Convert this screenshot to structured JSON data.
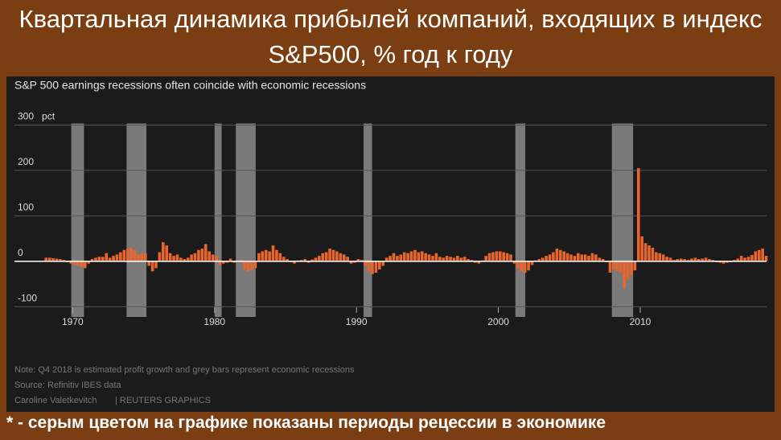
{
  "header": {
    "title": "Квартальная динамика прибылей компаний, входящих в индекс S&P500, % год к году"
  },
  "chart_data": {
    "type": "bar",
    "subtitle": "S&P 500 earnings recessions often coincide with economic recessions",
    "x": [
      1968,
      1968.25,
      1968.5,
      1968.75,
      1969,
      1969.25,
      1969.5,
      1969.75,
      1970,
      1970.25,
      1970.5,
      1970.75,
      1971,
      1971.25,
      1971.5,
      1971.75,
      1972,
      1972.25,
      1972.5,
      1972.75,
      1973,
      1973.25,
      1973.5,
      1973.75,
      1974,
      1974.25,
      1974.5,
      1974.75,
      1975,
      1975.25,
      1975.5,
      1975.75,
      1976,
      1976.25,
      1976.5,
      1976.75,
      1977,
      1977.25,
      1977.5,
      1977.75,
      1978,
      1978.25,
      1978.5,
      1978.75,
      1979,
      1979.25,
      1979.5,
      1979.75,
      1980,
      1980.25,
      1980.5,
      1980.75,
      1981,
      1981.25,
      1981.5,
      1981.75,
      1982,
      1982.25,
      1982.5,
      1982.75,
      1983,
      1983.25,
      1983.5,
      1983.75,
      1984,
      1984.25,
      1984.5,
      1984.75,
      1985,
      1985.25,
      1985.5,
      1985.75,
      1986,
      1986.25,
      1986.5,
      1986.75,
      1987,
      1987.25,
      1987.5,
      1987.75,
      1988,
      1988.25,
      1988.5,
      1988.75,
      1989,
      1989.25,
      1989.5,
      1989.75,
      1990,
      1990.25,
      1990.5,
      1990.75,
      1991,
      1991.25,
      1991.5,
      1991.75,
      1992,
      1992.25,
      1992.5,
      1992.75,
      1993,
      1993.25,
      1993.5,
      1993.75,
      1994,
      1994.25,
      1994.5,
      1994.75,
      1995,
      1995.25,
      1995.5,
      1995.75,
      1996,
      1996.25,
      1996.5,
      1996.75,
      1997,
      1997.25,
      1997.5,
      1997.75,
      1998,
      1998.25,
      1998.5,
      1998.75,
      1999,
      1999.25,
      1999.5,
      1999.75,
      2000,
      2000.25,
      2000.5,
      2000.75,
      2001,
      2001.25,
      2001.5,
      2001.75,
      2002,
      2002.25,
      2002.5,
      2002.75,
      2003,
      2003.25,
      2003.5,
      2003.75,
      2004,
      2004.25,
      2004.5,
      2004.75,
      2005,
      2005.25,
      2005.5,
      2005.75,
      2006,
      2006.25,
      2006.5,
      2006.75,
      2007,
      2007.25,
      2007.5,
      2007.75,
      2008,
      2008.25,
      2008.5,
      2008.75,
      2009,
      2009.25,
      2009.5,
      2009.75,
      2010,
      2010.25,
      2010.5,
      2010.75,
      2011,
      2011.25,
      2011.5,
      2011.75,
      2012,
      2012.25,
      2012.5,
      2012.75,
      2013,
      2013.25,
      2013.5,
      2013.75,
      2014,
      2014.25,
      2014.5,
      2014.75,
      2015,
      2015.25,
      2015.5,
      2015.75,
      2016,
      2016.25,
      2016.5,
      2016.75,
      2017,
      2017.25,
      2017.5,
      2017.75,
      2018,
      2018.25,
      2018.5,
      2018.75
    ],
    "values": [
      8,
      8,
      7,
      6,
      5,
      3,
      -2,
      -5,
      -8,
      -10,
      -12,
      -15,
      -5,
      5,
      8,
      10,
      10,
      18,
      8,
      12,
      15,
      20,
      25,
      28,
      30,
      25,
      15,
      18,
      18,
      -10,
      -22,
      -15,
      20,
      42,
      35,
      18,
      12,
      15,
      8,
      5,
      8,
      15,
      18,
      25,
      28,
      38,
      22,
      15,
      12,
      -8,
      -5,
      -3,
      6,
      -3,
      2,
      3,
      -18,
      -22,
      -20,
      -15,
      18,
      22,
      25,
      22,
      35,
      25,
      18,
      10,
      5,
      -2,
      -5,
      2,
      3,
      5,
      -3,
      4,
      8,
      12,
      18,
      20,
      28,
      25,
      22,
      18,
      15,
      10,
      -5,
      -3,
      5,
      3,
      -10,
      -22,
      -28,
      -25,
      -18,
      -10,
      8,
      12,
      18,
      12,
      15,
      20,
      18,
      22,
      25,
      20,
      22,
      18,
      15,
      12,
      18,
      10,
      8,
      12,
      10,
      8,
      12,
      8,
      10,
      5,
      3,
      -3,
      -5,
      2,
      12,
      18,
      20,
      22,
      22,
      20,
      18,
      15,
      -5,
      -15,
      -22,
      -25,
      -20,
      -8,
      2,
      5,
      8,
      12,
      15,
      20,
      28,
      25,
      22,
      18,
      15,
      12,
      18,
      15,
      15,
      12,
      18,
      15,
      8,
      5,
      -2,
      -25,
      -18,
      -22,
      -25,
      -60,
      -40,
      -30,
      -20,
      205,
      55,
      40,
      35,
      30,
      20,
      18,
      15,
      10,
      8,
      3,
      5,
      6,
      5,
      3,
      6,
      8,
      5,
      6,
      8,
      5,
      3,
      -2,
      -3,
      -5,
      -3,
      -2,
      3,
      6,
      12,
      8,
      10,
      14,
      22,
      25,
      28,
      12
    ],
    "color": "#e8662e",
    "recession_color": "#7a7a7a",
    "recessions": [
      [
        1969.9,
        1970.8
      ],
      [
        1973.8,
        1975.2
      ],
      [
        1980.0,
        1980.5
      ],
      [
        1981.5,
        1982.9
      ],
      [
        1990.5,
        1991.1
      ],
      [
        2001.2,
        2001.9
      ],
      [
        2008.0,
        2009.5
      ]
    ],
    "xlim": [
      1965.9,
      2018.9
    ],
    "ylim": [
      -110,
      330
    ],
    "yticks": [
      {
        "value": 300,
        "label": "300   pct"
      },
      200,
      100,
      0,
      -100
    ],
    "xticks": [
      1970,
      1980,
      1990,
      2000,
      2010
    ],
    "grid": true,
    "notes": [
      "Note: Q4 2018 is estimated profit growth and grey bars represent economic recessions",
      "Source: Refinitiv IBES data"
    ],
    "credit": "Caroline Valetkevitch",
    "publisher": "| REUTERS GRAPHICS"
  },
  "footer": {
    "note": "* - серым цветом на графике показаны периоды рецессии в экономике"
  }
}
